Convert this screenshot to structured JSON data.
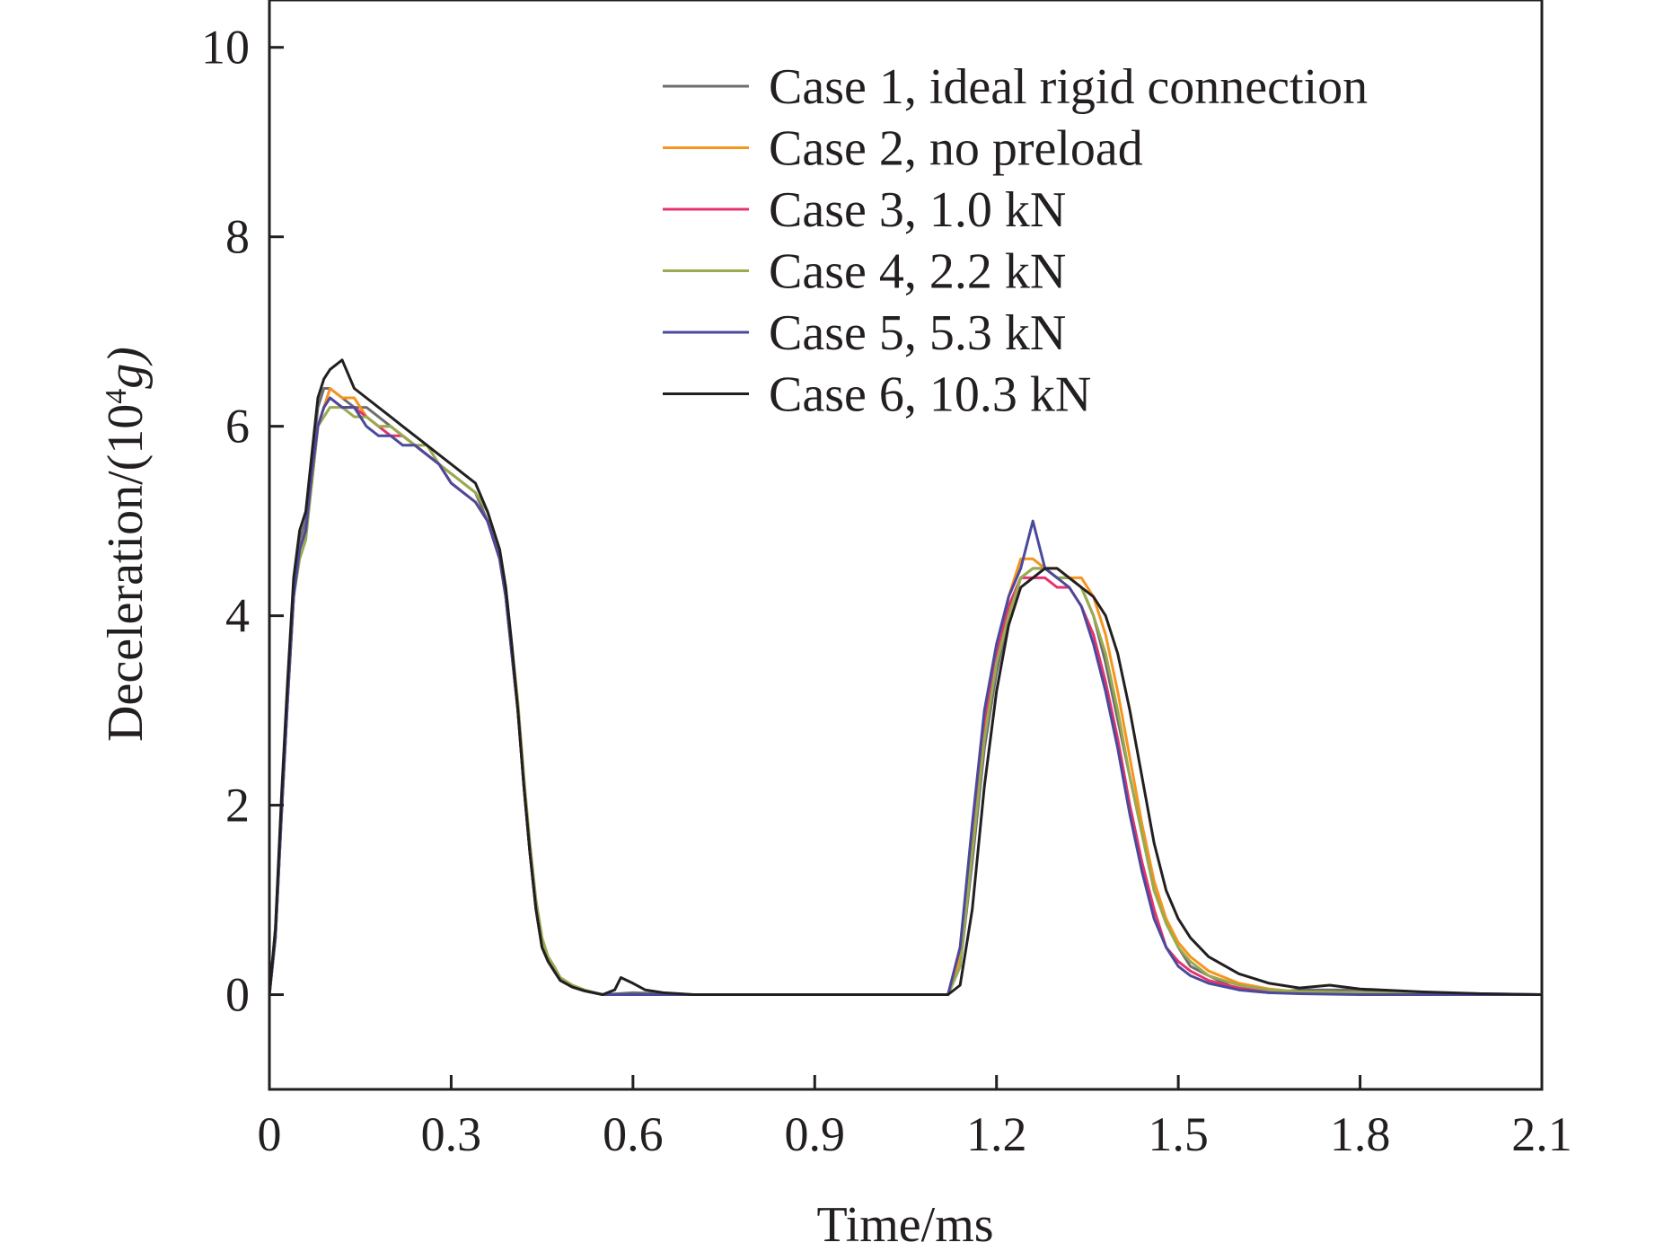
{
  "chart_data": {
    "type": "line",
    "title": "",
    "xlabel": "Time/ms",
    "ylabel_prefix": "Deceleration/(10",
    "ylabel_exponent": "4",
    "ylabel_suffix": "g)",
    "xlim": [
      0,
      2.1
    ],
    "ylim": [
      -1,
      10.5
    ],
    "xticks": [
      0,
      0.3,
      0.6,
      0.9,
      1.2,
      1.5,
      1.8,
      2.1
    ],
    "xtick_labels": [
      "0",
      "0.3",
      "0.6",
      "0.9",
      "1.2",
      "1.5",
      "1.8",
      "2.1"
    ],
    "yticks": [
      0,
      2,
      4,
      6,
      8,
      10
    ],
    "ytick_labels": [
      "0",
      "2",
      "4",
      "6",
      "8",
      "10"
    ],
    "grid": false,
    "legend_position": "top-right",
    "series": [
      {
        "name": "Case 1, ideal rigid connection",
        "color": "#6d6e71",
        "x": [
          0,
          0.01,
          0.02,
          0.03,
          0.04,
          0.05,
          0.06,
          0.07,
          0.08,
          0.09,
          0.1,
          0.12,
          0.14,
          0.16,
          0.18,
          0.2,
          0.22,
          0.24,
          0.26,
          0.28,
          0.3,
          0.32,
          0.34,
          0.36,
          0.38,
          0.39,
          0.4,
          0.41,
          0.42,
          0.43,
          0.44,
          0.45,
          0.46,
          0.47,
          0.48,
          0.5,
          0.52,
          0.55,
          0.6,
          0.7,
          0.8,
          0.9,
          1.0,
          1.1,
          1.12,
          1.14,
          1.16,
          1.18,
          1.2,
          1.22,
          1.24,
          1.26,
          1.28,
          1.3,
          1.32,
          1.34,
          1.36,
          1.38,
          1.4,
          1.42,
          1.44,
          1.46,
          1.48,
          1.5,
          1.52,
          1.55,
          1.6,
          1.65,
          1.7,
          1.8,
          1.9,
          2.0,
          2.1
        ],
        "y": [
          0,
          0.7,
          2.0,
          3.2,
          4.3,
          4.8,
          5.0,
          5.6,
          6.2,
          6.4,
          6.4,
          6.3,
          6.2,
          6.2,
          6.1,
          6.0,
          5.9,
          5.8,
          5.7,
          5.6,
          5.5,
          5.4,
          5.3,
          5.0,
          4.6,
          4.2,
          3.6,
          3.0,
          2.2,
          1.5,
          0.9,
          0.5,
          0.35,
          0.25,
          0.15,
          0.08,
          0.04,
          0.0,
          0.02,
          0.0,
          0.0,
          0.0,
          0.0,
          0.0,
          0.0,
          0.3,
          1.4,
          2.6,
          3.4,
          4.0,
          4.4,
          4.5,
          4.5,
          4.4,
          4.4,
          4.3,
          4.0,
          3.5,
          2.9,
          2.3,
          1.7,
          1.1,
          0.8,
          0.5,
          0.3,
          0.2,
          0.05,
          0.02,
          0.05,
          0.05,
          0.02,
          0.01,
          0.0
        ]
      },
      {
        "name": "Case 2, no preload",
        "color": "#f7941d",
        "x": [
          0,
          0.01,
          0.02,
          0.03,
          0.04,
          0.05,
          0.06,
          0.07,
          0.08,
          0.09,
          0.1,
          0.12,
          0.14,
          0.16,
          0.18,
          0.2,
          0.22,
          0.24,
          0.26,
          0.28,
          0.3,
          0.32,
          0.34,
          0.36,
          0.38,
          0.39,
          0.4,
          0.41,
          0.42,
          0.43,
          0.44,
          0.45,
          0.46,
          0.47,
          0.48,
          0.5,
          0.52,
          0.55,
          0.6,
          0.7,
          0.8,
          0.9,
          1.0,
          1.1,
          1.12,
          1.14,
          1.16,
          1.18,
          1.2,
          1.22,
          1.24,
          1.26,
          1.28,
          1.3,
          1.32,
          1.34,
          1.36,
          1.38,
          1.4,
          1.42,
          1.44,
          1.46,
          1.48,
          1.5,
          1.52,
          1.55,
          1.6,
          1.65,
          1.7,
          1.8,
          1.9,
          2.0,
          2.1
        ],
        "y": [
          0,
          0.6,
          1.9,
          3.1,
          4.2,
          4.7,
          4.9,
          5.4,
          6.0,
          6.2,
          6.4,
          6.3,
          6.3,
          6.1,
          6.0,
          6.0,
          5.9,
          5.8,
          5.7,
          5.6,
          5.4,
          5.3,
          5.2,
          5.0,
          4.6,
          4.2,
          3.6,
          3.0,
          2.2,
          1.5,
          0.9,
          0.5,
          0.35,
          0.25,
          0.15,
          0.08,
          0.04,
          0.0,
          0.0,
          0.0,
          0.0,
          0.0,
          0.0,
          0.0,
          0.0,
          0.4,
          1.6,
          2.8,
          3.5,
          4.2,
          4.6,
          4.6,
          4.5,
          4.5,
          4.4,
          4.4,
          4.2,
          3.8,
          3.2,
          2.5,
          1.8,
          1.2,
          0.8,
          0.55,
          0.4,
          0.25,
          0.12,
          0.06,
          0.03,
          0.02,
          0.01,
          0.0,
          0.0
        ]
      },
      {
        "name": "Case 3, 1.0 kN",
        "color": "#e5336e",
        "x": [
          0,
          0.01,
          0.02,
          0.03,
          0.04,
          0.05,
          0.06,
          0.07,
          0.08,
          0.09,
          0.1,
          0.12,
          0.14,
          0.16,
          0.18,
          0.2,
          0.22,
          0.24,
          0.26,
          0.28,
          0.3,
          0.32,
          0.34,
          0.36,
          0.38,
          0.39,
          0.4,
          0.41,
          0.42,
          0.43,
          0.44,
          0.45,
          0.46,
          0.47,
          0.48,
          0.5,
          0.52,
          0.55,
          0.6,
          0.7,
          0.8,
          0.9,
          1.0,
          1.1,
          1.12,
          1.14,
          1.16,
          1.18,
          1.2,
          1.22,
          1.24,
          1.26,
          1.28,
          1.3,
          1.32,
          1.34,
          1.36,
          1.38,
          1.4,
          1.42,
          1.44,
          1.46,
          1.48,
          1.5,
          1.52,
          1.55,
          1.6,
          1.65,
          1.7,
          1.8,
          1.9,
          2.0,
          2.1
        ],
        "y": [
          0,
          0.6,
          1.9,
          3.1,
          4.2,
          4.7,
          4.9,
          5.4,
          6.0,
          6.2,
          6.3,
          6.2,
          6.2,
          6.1,
          6.0,
          5.9,
          5.9,
          5.8,
          5.7,
          5.6,
          5.4,
          5.3,
          5.2,
          5.0,
          4.6,
          4.2,
          3.6,
          3.0,
          2.2,
          1.5,
          0.9,
          0.5,
          0.35,
          0.25,
          0.15,
          0.08,
          0.04,
          0.0,
          0.0,
          0.0,
          0.0,
          0.0,
          0.0,
          0.0,
          0.0,
          0.5,
          1.7,
          2.9,
          3.6,
          4.1,
          4.4,
          4.4,
          4.4,
          4.3,
          4.3,
          4.1,
          3.8,
          3.3,
          2.7,
          2.0,
          1.4,
          0.9,
          0.5,
          0.35,
          0.25,
          0.15,
          0.07,
          0.03,
          0.02,
          0.01,
          0.0,
          0.0,
          0.0
        ]
      },
      {
        "name": "Case 4, 2.2 kN",
        "color": "#9aaa4f",
        "x": [
          0,
          0.01,
          0.02,
          0.03,
          0.04,
          0.05,
          0.06,
          0.07,
          0.08,
          0.09,
          0.1,
          0.12,
          0.14,
          0.16,
          0.18,
          0.2,
          0.22,
          0.24,
          0.26,
          0.28,
          0.3,
          0.32,
          0.34,
          0.36,
          0.38,
          0.39,
          0.4,
          0.41,
          0.42,
          0.43,
          0.44,
          0.45,
          0.46,
          0.47,
          0.48,
          0.5,
          0.52,
          0.55,
          0.6,
          0.7,
          0.8,
          0.9,
          1.0,
          1.1,
          1.12,
          1.14,
          1.16,
          1.18,
          1.2,
          1.22,
          1.24,
          1.26,
          1.28,
          1.3,
          1.32,
          1.34,
          1.36,
          1.38,
          1.4,
          1.42,
          1.44,
          1.46,
          1.48,
          1.5,
          1.52,
          1.55,
          1.6,
          1.65,
          1.7,
          1.8,
          1.9,
          2.0,
          2.1
        ],
        "y": [
          0,
          0.6,
          1.9,
          3.1,
          4.2,
          4.6,
          4.8,
          5.4,
          6.0,
          6.1,
          6.2,
          6.2,
          6.1,
          6.1,
          6.0,
          6.0,
          5.9,
          5.8,
          5.8,
          5.6,
          5.5,
          5.4,
          5.3,
          5.1,
          4.7,
          4.3,
          3.7,
          3.1,
          2.3,
          1.6,
          1.0,
          0.6,
          0.4,
          0.3,
          0.18,
          0.1,
          0.05,
          0.0,
          0.0,
          0.0,
          0.0,
          0.0,
          0.0,
          0.0,
          0.0,
          0.3,
          1.5,
          2.7,
          3.5,
          4.0,
          4.4,
          4.5,
          4.5,
          4.4,
          4.4,
          4.3,
          4.0,
          3.6,
          3.0,
          2.3,
          1.7,
          1.1,
          0.75,
          0.5,
          0.35,
          0.2,
          0.1,
          0.05,
          0.03,
          0.02,
          0.01,
          0.0,
          0.0
        ]
      },
      {
        "name": "Case 5, 5.3 kN",
        "color": "#4a4a9c",
        "x": [
          0,
          0.01,
          0.02,
          0.03,
          0.04,
          0.05,
          0.06,
          0.07,
          0.08,
          0.09,
          0.1,
          0.12,
          0.14,
          0.16,
          0.18,
          0.2,
          0.22,
          0.24,
          0.26,
          0.28,
          0.3,
          0.32,
          0.34,
          0.36,
          0.38,
          0.39,
          0.4,
          0.41,
          0.42,
          0.43,
          0.44,
          0.45,
          0.46,
          0.47,
          0.48,
          0.5,
          0.52,
          0.55,
          0.6,
          0.7,
          0.8,
          0.9,
          1.0,
          1.1,
          1.12,
          1.14,
          1.16,
          1.18,
          1.2,
          1.22,
          1.24,
          1.26,
          1.28,
          1.3,
          1.32,
          1.34,
          1.36,
          1.38,
          1.4,
          1.42,
          1.44,
          1.46,
          1.48,
          1.5,
          1.52,
          1.55,
          1.6,
          1.65,
          1.7,
          1.8,
          1.9,
          2.0,
          2.1
        ],
        "y": [
          0,
          0.6,
          1.9,
          3.1,
          4.2,
          4.7,
          4.9,
          5.5,
          6.0,
          6.2,
          6.3,
          6.2,
          6.2,
          6.0,
          5.9,
          5.9,
          5.8,
          5.8,
          5.7,
          5.6,
          5.4,
          5.3,
          5.2,
          5.0,
          4.6,
          4.2,
          3.6,
          3.0,
          2.2,
          1.5,
          0.9,
          0.5,
          0.35,
          0.25,
          0.15,
          0.08,
          0.04,
          0.0,
          0.0,
          0.0,
          0.0,
          0.0,
          0.0,
          0.0,
          0.0,
          0.5,
          1.8,
          3.0,
          3.7,
          4.2,
          4.5,
          5.0,
          4.5,
          4.4,
          4.3,
          4.1,
          3.7,
          3.2,
          2.6,
          1.9,
          1.3,
          0.8,
          0.5,
          0.3,
          0.2,
          0.12,
          0.05,
          0.02,
          0.01,
          0.0,
          0.0,
          0.0,
          0.0
        ]
      },
      {
        "name": "Case 6, 10.3 kN",
        "color": "#231f20",
        "x": [
          0,
          0.01,
          0.02,
          0.03,
          0.04,
          0.05,
          0.06,
          0.07,
          0.08,
          0.09,
          0.1,
          0.12,
          0.14,
          0.16,
          0.18,
          0.2,
          0.22,
          0.24,
          0.26,
          0.28,
          0.3,
          0.32,
          0.34,
          0.36,
          0.38,
          0.39,
          0.4,
          0.41,
          0.42,
          0.43,
          0.44,
          0.45,
          0.46,
          0.47,
          0.48,
          0.5,
          0.52,
          0.55,
          0.57,
          0.58,
          0.6,
          0.62,
          0.65,
          0.7,
          0.8,
          0.9,
          1.0,
          1.1,
          1.12,
          1.14,
          1.16,
          1.18,
          1.2,
          1.22,
          1.24,
          1.26,
          1.28,
          1.3,
          1.32,
          1.34,
          1.36,
          1.38,
          1.4,
          1.42,
          1.44,
          1.46,
          1.48,
          1.5,
          1.52,
          1.55,
          1.6,
          1.65,
          1.7,
          1.75,
          1.8,
          1.9,
          2.0,
          2.1
        ],
        "y": [
          0,
          0.7,
          2.1,
          3.3,
          4.4,
          4.9,
          5.1,
          5.7,
          6.3,
          6.5,
          6.6,
          6.7,
          6.4,
          6.3,
          6.2,
          6.1,
          6.0,
          5.9,
          5.8,
          5.7,
          5.6,
          5.5,
          5.4,
          5.1,
          4.7,
          4.3,
          3.7,
          3.0,
          2.2,
          1.5,
          0.9,
          0.5,
          0.35,
          0.25,
          0.15,
          0.08,
          0.04,
          0.0,
          0.05,
          0.18,
          0.12,
          0.05,
          0.02,
          0.0,
          0.0,
          0.0,
          0.0,
          0.0,
          0.0,
          0.1,
          0.9,
          2.2,
          3.2,
          3.9,
          4.3,
          4.4,
          4.5,
          4.5,
          4.4,
          4.3,
          4.2,
          4.0,
          3.6,
          3.0,
          2.3,
          1.6,
          1.1,
          0.8,
          0.6,
          0.4,
          0.22,
          0.12,
          0.07,
          0.1,
          0.06,
          0.03,
          0.01,
          0.0
        ]
      }
    ]
  }
}
